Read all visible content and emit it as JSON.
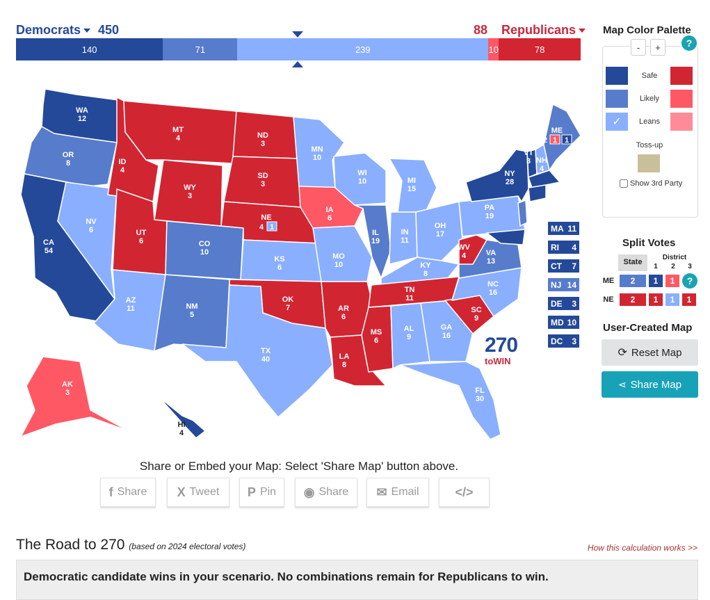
{
  "colors": {
    "dem_safe": "#244999",
    "dem_likely": "#577ccc",
    "dem_leans": "#8aafff",
    "rep_safe": "#d22532",
    "rep_likely": "#ff5865",
    "rep_leans": "#ff8b98",
    "tossup": "#c9c09b",
    "accent": "#17a2b8"
  },
  "header": {
    "dem_name": "Democrats",
    "dem_total": "450",
    "rep_name": "Republicans",
    "rep_total": "88",
    "tally": [
      {
        "label": "140",
        "value": 140,
        "rating": "dem_safe"
      },
      {
        "label": "71",
        "value": 71,
        "rating": "dem_likely"
      },
      {
        "label": "239",
        "value": 239,
        "rating": "dem_leans"
      },
      {
        "label": "10",
        "value": 10,
        "rating": "rep_likely"
      },
      {
        "label": "78",
        "value": 78,
        "rating": "rep_safe"
      }
    ]
  },
  "states": {
    "WA": "12",
    "OR": "8",
    "CA": "54",
    "NV": "6",
    "ID": "4",
    "MT": "4",
    "WY": "3",
    "UT": "6",
    "CO": "10",
    "AZ": "11",
    "NM": "5",
    "ND": "3",
    "SD": "3",
    "NE": "4",
    "NE_D": "1",
    "KS": "6",
    "OK": "7",
    "TX": "40",
    "MN": "10",
    "IA": "6",
    "MO": "10",
    "AR": "6",
    "LA": "8",
    "WI": "10",
    "IL": "19",
    "MI": "15",
    "IN": "11",
    "OH": "17",
    "KY": "8",
    "TN": "11",
    "MS": "6",
    "AL": "9",
    "GA": "16",
    "FL": "30",
    "SC": "9",
    "NC": "16",
    "VA": "13",
    "WV": "4",
    "PA": "19",
    "NY": "28",
    "VT": "3",
    "NH": "4",
    "ME": "4",
    "ME_1": "2",
    "ME_2": "1",
    "ME_3": "1",
    "AK": "3",
    "HI": "4"
  },
  "northeast_boxes": [
    {
      "abbr": "MA",
      "votes": "11",
      "rating": "dem_safe"
    },
    {
      "abbr": "RI",
      "votes": "4",
      "rating": "dem_safe"
    },
    {
      "abbr": "CT",
      "votes": "7",
      "rating": "dem_safe"
    },
    {
      "abbr": "NJ",
      "votes": "14",
      "rating": "dem_likely"
    },
    {
      "abbr": "DE",
      "votes": "3",
      "rating": "dem_safe"
    },
    {
      "abbr": "MD",
      "votes": "10",
      "rating": "dem_safe"
    },
    {
      "abbr": "DC",
      "votes": "3",
      "rating": "dem_safe"
    }
  ],
  "logo": {
    "number": "270",
    "word": "toWIN"
  },
  "palette": {
    "title": "Map Color Palette",
    "zoom_out": "-",
    "zoom_in": "+",
    "help": "?",
    "safe_label": "Safe",
    "likely_label": "Likely",
    "leans_label": "Leans",
    "tossup_label": "Toss-up",
    "third_party_label": "Show 3rd Party",
    "checkmark": "✓"
  },
  "split_votes": {
    "title": "Split Votes",
    "state_header": "State",
    "district_header": "District",
    "districts": [
      "1",
      "2",
      "3"
    ],
    "help": "?",
    "rows": [
      {
        "state": "ME",
        "state_val": "2",
        "d1": "1",
        "d2": "1"
      },
      {
        "state": "NE",
        "state_val": "2",
        "d1": "1",
        "d2": "1",
        "d3": "1"
      }
    ]
  },
  "user_map": {
    "title": "User-Created Map",
    "reset_label": "Reset Map",
    "share_label": "Share Map"
  },
  "share": {
    "title": "Share or Embed your Map: Select 'Share Map' button above.",
    "buttons": [
      {
        "icon": "f",
        "label": "Share"
      },
      {
        "icon": "X",
        "label": "Tweet"
      },
      {
        "icon": "P",
        "label": "Pin"
      },
      {
        "icon": "◉",
        "label": "Share"
      },
      {
        "icon": "✉",
        "label": "Email"
      },
      {
        "icon": "</>",
        "label": ""
      }
    ]
  },
  "road": {
    "title": "The Road to 270",
    "subtitle": "(based on 2024 electoral votes)",
    "link": "How this calculation works >>",
    "result": "Democratic candidate wins in your scenario. No combinations remain for Republicans to win."
  }
}
